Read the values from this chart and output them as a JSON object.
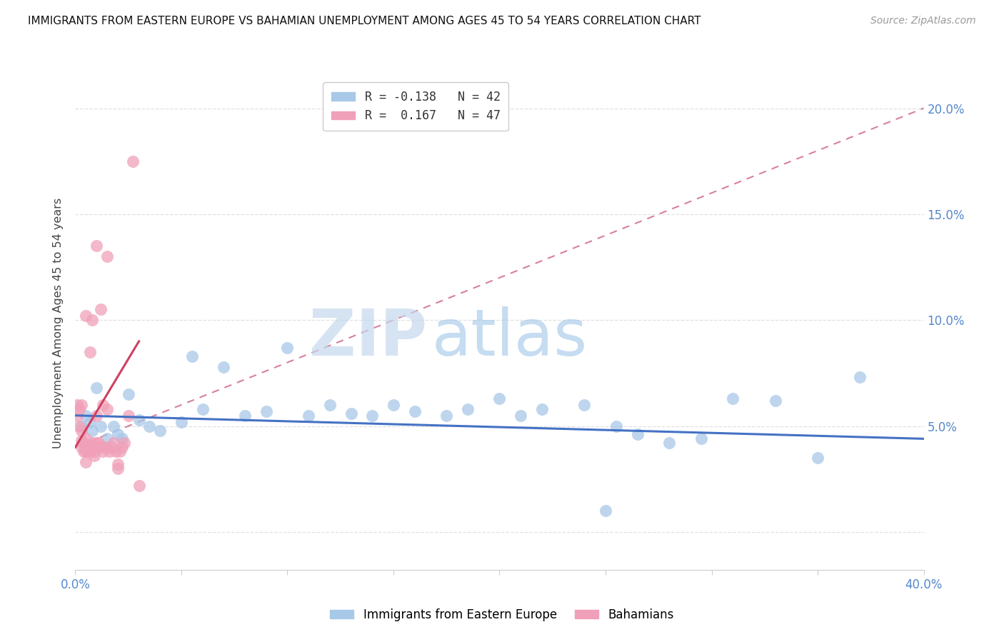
{
  "title": "IMMIGRANTS FROM EASTERN EUROPE VS BAHAMIAN UNEMPLOYMENT AMONG AGES 45 TO 54 YEARS CORRELATION CHART",
  "source": "Source: ZipAtlas.com",
  "ylabel": "Unemployment Among Ages 45 to 54 years",
  "xlim": [
    0.0,
    0.4
  ],
  "ylim": [
    -0.018,
    0.215
  ],
  "yticks": [
    0.0,
    0.05,
    0.1,
    0.15,
    0.2
  ],
  "ytick_labels": [
    "",
    "5.0%",
    "10.0%",
    "15.0%",
    "20.0%"
  ],
  "xticks": [
    0.0,
    0.05,
    0.1,
    0.15,
    0.2,
    0.25,
    0.3,
    0.35,
    0.4
  ],
  "xtick_labels": [
    "0.0%",
    "",
    "",
    "",
    "",
    "",
    "",
    "",
    "40.0%"
  ],
  "blue_color": "#a8c8e8",
  "pink_color": "#f0a0b8",
  "blue_line_color": "#4472c4",
  "pink_line_color": "#d04060",
  "pink_dashed_color": "#d06080",
  "axis_label_color": "#5588cc",
  "grid_color": "#e0e0e0",
  "background_color": "#ffffff",
  "legend_blue_label": "R = -0.138   N = 42",
  "legend_pink_label": "R =  0.167   N = 47",
  "bottom_legend_blue": "Immigrants from Eastern Europe",
  "bottom_legend_pink": "Bahamians",
  "blue_scatter_x": [
    0.003,
    0.005,
    0.007,
    0.008,
    0.01,
    0.012,
    0.015,
    0.018,
    0.02,
    0.022,
    0.025,
    0.03,
    0.035,
    0.04,
    0.05,
    0.055,
    0.06,
    0.07,
    0.08,
    0.09,
    0.1,
    0.11,
    0.12,
    0.13,
    0.14,
    0.15,
    0.16,
    0.175,
    0.185,
    0.2,
    0.21,
    0.22,
    0.24,
    0.255,
    0.265,
    0.28,
    0.295,
    0.31,
    0.33,
    0.35,
    0.37,
    0.25
  ],
  "blue_scatter_y": [
    0.05,
    0.055,
    0.052,
    0.048,
    0.068,
    0.05,
    0.044,
    0.05,
    0.046,
    0.044,
    0.065,
    0.053,
    0.05,
    0.048,
    0.052,
    0.083,
    0.058,
    0.078,
    0.055,
    0.057,
    0.087,
    0.055,
    0.06,
    0.056,
    0.055,
    0.06,
    0.057,
    0.055,
    0.058,
    0.063,
    0.055,
    0.058,
    0.06,
    0.05,
    0.046,
    0.042,
    0.044,
    0.063,
    0.062,
    0.035,
    0.073,
    0.01
  ],
  "pink_scatter_x": [
    0.001,
    0.001,
    0.002,
    0.002,
    0.003,
    0.003,
    0.003,
    0.004,
    0.004,
    0.005,
    0.005,
    0.005,
    0.006,
    0.006,
    0.007,
    0.007,
    0.008,
    0.008,
    0.009,
    0.009,
    0.01,
    0.01,
    0.011,
    0.012,
    0.013,
    0.013,
    0.014,
    0.015,
    0.016,
    0.017,
    0.018,
    0.019,
    0.02,
    0.021,
    0.022,
    0.023,
    0.025,
    0.027,
    0.03,
    0.012,
    0.008,
    0.01,
    0.015,
    0.02,
    0.005,
    0.007,
    0.003
  ],
  "pink_scatter_y": [
    0.055,
    0.06,
    0.058,
    0.05,
    0.048,
    0.043,
    0.04,
    0.042,
    0.038,
    0.044,
    0.038,
    0.033,
    0.038,
    0.04,
    0.04,
    0.038,
    0.04,
    0.042,
    0.038,
    0.036,
    0.055,
    0.042,
    0.042,
    0.04,
    0.038,
    0.06,
    0.04,
    0.058,
    0.038,
    0.04,
    0.042,
    0.038,
    0.032,
    0.038,
    0.04,
    0.042,
    0.055,
    0.175,
    0.022,
    0.105,
    0.1,
    0.135,
    0.13,
    0.03,
    0.102,
    0.085,
    0.06
  ]
}
